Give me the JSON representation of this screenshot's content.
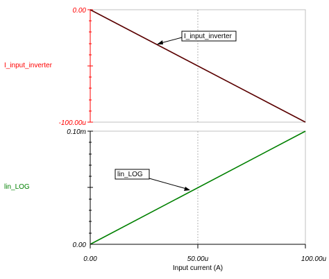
{
  "chart_data": [
    {
      "type": "line",
      "ylabel": "I_input_inverter",
      "y_tick_labels": {
        "top": "0.00",
        "bottom": "-100.00u"
      },
      "ylim": [
        -0.0001,
        0
      ],
      "xlim": [
        0,
        0.0001
      ],
      "grid": "x-midline",
      "series": [
        {
          "name": "I_input_inverter",
          "x": [
            0,
            0.0001
          ],
          "y": [
            0,
            -0.0001
          ]
        }
      ],
      "annotation": {
        "text": "I_input_inverter",
        "x": 3e-05,
        "y": -3e-05
      },
      "colors": {
        "axis": "#ff0000",
        "line": "#5a0000"
      }
    },
    {
      "type": "line",
      "ylabel": "lin_LOG",
      "y_tick_labels": {
        "top": "0.10m",
        "bottom": "0.00"
      },
      "ylim": [
        0,
        0.0001
      ],
      "xlim": [
        0,
        0.0001
      ],
      "grid": "x-midline",
      "series": [
        {
          "name": "lin_LOG",
          "x": [
            0,
            0.0001
          ],
          "y": [
            0,
            0.0001
          ]
        }
      ],
      "annotation": {
        "text": "lin_LOG",
        "x": 4.5e-05,
        "y": 4.5e-05
      },
      "colors": {
        "axis": "#000000",
        "line": "#008000"
      }
    }
  ],
  "x_axis": {
    "label": "Input current (A)",
    "tick_labels": [
      "0.00",
      "50.00u",
      "100.00u"
    ]
  }
}
